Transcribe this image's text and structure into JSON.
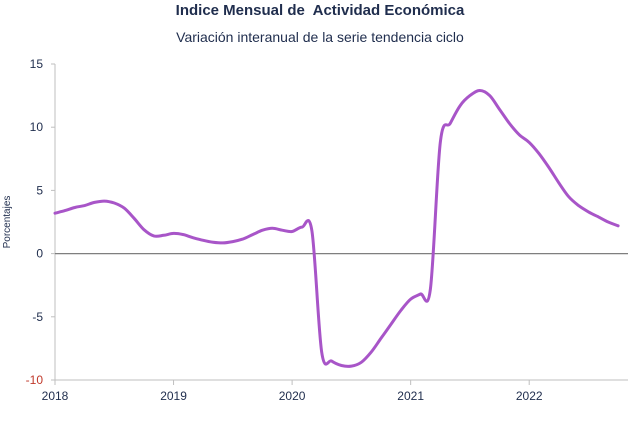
{
  "chart_data": {
    "type": "line",
    "title": "Indice Mensual de  Actividad Económica",
    "subtitle": "Variación interanual de la serie tendencia ciclo",
    "xlabel": "",
    "ylabel": "Porcentajes",
    "ylim": [
      -10,
      15
    ],
    "yticks": [
      15,
      10,
      5,
      0,
      -5,
      -10
    ],
    "xlim": [
      "2018-01",
      "2022-11"
    ],
    "xticks": [
      "2018",
      "2019",
      "2020",
      "2021",
      "2022"
    ],
    "grid": false,
    "legend": "none",
    "colors": {
      "line": "#a855c8",
      "zero_line": "#7f7f7f",
      "axis": "#bfbfbf",
      "text": "#1f2d4d",
      "negative_tick": "#c0392b"
    },
    "series": [
      {
        "values": [
          [
            "2018-01",
            3.2
          ],
          [
            "2018-02",
            3.4
          ],
          [
            "2018-03",
            3.65
          ],
          [
            "2018-04",
            3.8
          ],
          [
            "2018-05",
            4.05
          ],
          [
            "2018-06",
            4.15
          ],
          [
            "2018-07",
            4.0
          ],
          [
            "2018-08",
            3.6
          ],
          [
            "2018-09",
            2.8
          ],
          [
            "2018-10",
            1.9
          ],
          [
            "2018-11",
            1.4
          ],
          [
            "2018-12",
            1.45
          ],
          [
            "2019-01",
            1.6
          ],
          [
            "2019-02",
            1.5
          ],
          [
            "2019-03",
            1.25
          ],
          [
            "2019-04",
            1.05
          ],
          [
            "2019-05",
            0.9
          ],
          [
            "2019-06",
            0.85
          ],
          [
            "2019-07",
            0.95
          ],
          [
            "2019-08",
            1.15
          ],
          [
            "2019-09",
            1.5
          ],
          [
            "2019-10",
            1.85
          ],
          [
            "2019-11",
            2.0
          ],
          [
            "2019-12",
            1.85
          ],
          [
            "2020-01",
            1.75
          ],
          [
            "2020-02",
            2.1
          ],
          [
            "2020-03",
            1.8
          ],
          [
            "2020-04",
            -7.8
          ],
          [
            "2020-05",
            -8.5
          ],
          [
            "2020-06",
            -8.85
          ],
          [
            "2020-07",
            -8.9
          ],
          [
            "2020-08",
            -8.6
          ],
          [
            "2020-09",
            -7.8
          ],
          [
            "2020-10",
            -6.7
          ],
          [
            "2020-11",
            -5.6
          ],
          [
            "2020-12",
            -4.5
          ],
          [
            "2021-01",
            -3.6
          ],
          [
            "2021-02",
            -3.2
          ],
          [
            "2021-03",
            -2.8
          ],
          [
            "2021-04",
            8.8
          ],
          [
            "2021-05",
            10.3
          ],
          [
            "2021-06",
            11.7
          ],
          [
            "2021-07",
            12.5
          ],
          [
            "2021-08",
            12.9
          ],
          [
            "2021-09",
            12.5
          ],
          [
            "2021-10",
            11.4
          ],
          [
            "2021-11",
            10.3
          ],
          [
            "2021-12",
            9.4
          ],
          [
            "2022-01",
            8.8
          ],
          [
            "2022-02",
            7.9
          ],
          [
            "2022-03",
            6.8
          ],
          [
            "2022-04",
            5.6
          ],
          [
            "2022-05",
            4.5
          ],
          [
            "2022-06",
            3.8
          ],
          [
            "2022-07",
            3.3
          ],
          [
            "2022-08",
            2.9
          ],
          [
            "2022-09",
            2.5
          ],
          [
            "2022-10",
            2.2
          ]
        ]
      }
    ]
  }
}
